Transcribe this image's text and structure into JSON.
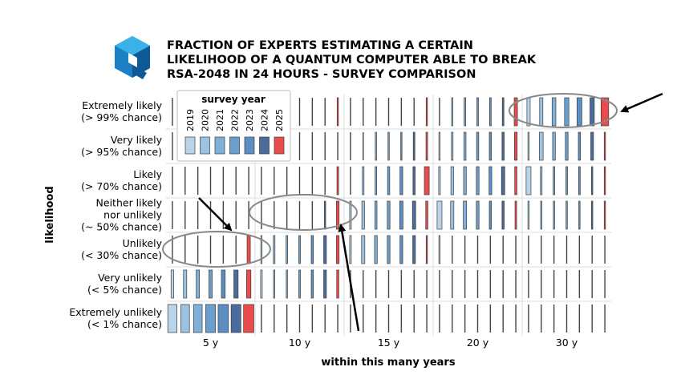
{
  "chart_data": {
    "type": "heatmap",
    "title_lines": [
      "FRACTION OF EXPERTS ESTIMATING A CERTAIN",
      "LIKELIHOOD OF A QUANTUM COMPUTER ABLE TO BREAK",
      "RSA-2048 IN 24 HOURS - SURVEY COMPARISON"
    ],
    "xlabel": "within this many years",
    "ylabel": "likelihood",
    "horizons": [
      "5 y",
      "10 y",
      "15 y",
      "20 y",
      "30 y"
    ],
    "likelihoods": [
      {
        "line1": "Extremely likely",
        "line2": "(> 99% chance)"
      },
      {
        "line1": "Very likely",
        "line2": "(> 95% chance)"
      },
      {
        "line1": "Likely",
        "line2": "(> 70% chance)"
      },
      {
        "line1": "Neither likely",
        "line2": "nor unlikely",
        "line3": "(~ 50% chance)"
      },
      {
        "line1": "Unlikely",
        "line2": "(< 30% chance)"
      },
      {
        "line1": "Very unlikely",
        "line2": "(< 5% chance)"
      },
      {
        "line1": "Extremely unlikely",
        "line2": "(< 1% chance)"
      }
    ],
    "legend": {
      "title": "survey year",
      "years": [
        "2019",
        "2020",
        "2021",
        "2022",
        "2023",
        "2024",
        "2025"
      ],
      "colors": [
        "#b9d4e9",
        "#9cc3e2",
        "#7eb0d9",
        "#6a9fcd",
        "#5b8fc3",
        "#4a6b9c",
        "#ea4b4b"
      ]
    },
    "fractions_note": "fraction of experts, per likelihood row, per horizon, per survey year 2019-2025",
    "series": [
      {
        "name": "2019",
        "values": [
          [
            0.0,
            0.0,
            0.0,
            0.0,
            0.3
          ],
          [
            0.0,
            0.0,
            0.0,
            0.05,
            0.08
          ],
          [
            0.0,
            0.0,
            0.0,
            0.15,
            0.45
          ],
          [
            0.0,
            0.0,
            0.15,
            0.45,
            0.08
          ],
          [
            0.0,
            0.08,
            0.15,
            0.1,
            0.0
          ],
          [
            0.25,
            0.15,
            0.0,
            0.0,
            0.0
          ],
          [
            0.85,
            0.0,
            0.0,
            0.0,
            0.0
          ]
        ]
      },
      {
        "name": "2020",
        "values": [
          [
            0.0,
            0.0,
            0.0,
            0.1,
            0.3
          ],
          [
            0.0,
            0.0,
            0.0,
            0.15,
            0.35
          ],
          [
            0.0,
            0.0,
            0.15,
            0.25,
            0.15
          ],
          [
            0.0,
            0.0,
            0.25,
            0.3,
            0.05
          ],
          [
            0.0,
            0.15,
            0.3,
            0.0,
            0.0
          ],
          [
            0.3,
            0.1,
            0.0,
            0.0,
            0.0
          ],
          [
            0.8,
            0.0,
            0.0,
            0.0,
            0.0
          ]
        ]
      },
      {
        "name": "2021",
        "values": [
          [
            0.0,
            0.0,
            0.0,
            0.15,
            0.35
          ],
          [
            0.0,
            0.0,
            0.08,
            0.2,
            0.25
          ],
          [
            0.0,
            0.0,
            0.15,
            0.25,
            0.15
          ],
          [
            0.0,
            0.0,
            0.2,
            0.3,
            0.05
          ],
          [
            0.0,
            0.15,
            0.25,
            0.0,
            0.0
          ],
          [
            0.3,
            0.1,
            0.0,
            0.0,
            0.0
          ],
          [
            0.8,
            0.0,
            0.0,
            0.0,
            0.0
          ]
        ]
      },
      {
        "name": "2022",
        "values": [
          [
            0.0,
            0.0,
            0.0,
            0.15,
            0.4
          ],
          [
            0.0,
            0.0,
            0.1,
            0.2,
            0.25
          ],
          [
            0.0,
            0.0,
            0.2,
            0.25,
            0.15
          ],
          [
            0.0,
            0.0,
            0.25,
            0.25,
            0.05
          ],
          [
            0.0,
            0.15,
            0.25,
            0.0,
            0.0
          ],
          [
            0.3,
            0.15,
            0.0,
            0.0,
            0.0
          ],
          [
            0.9,
            0.0,
            0.0,
            0.0,
            0.0
          ]
        ]
      },
      {
        "name": "2023",
        "values": [
          [
            0.0,
            0.0,
            0.0,
            0.15,
            0.45
          ],
          [
            0.0,
            0.0,
            0.1,
            0.2,
            0.2
          ],
          [
            0.0,
            0.0,
            0.25,
            0.25,
            0.15
          ],
          [
            0.0,
            0.0,
            0.3,
            0.2,
            0.05
          ],
          [
            0.0,
            0.2,
            0.25,
            0.0,
            0.0
          ],
          [
            0.35,
            0.2,
            0.0,
            0.0,
            0.0
          ],
          [
            0.95,
            0.0,
            0.0,
            0.0,
            0.0
          ]
        ]
      },
      {
        "name": "2024",
        "values": [
          [
            0.0,
            0.0,
            0.0,
            0.15,
            0.4
          ],
          [
            0.0,
            0.0,
            0.15,
            0.2,
            0.25
          ],
          [
            0.0,
            0.0,
            0.2,
            0.3,
            0.1
          ],
          [
            0.0,
            0.05,
            0.3,
            0.2,
            0.05
          ],
          [
            0.0,
            0.25,
            0.25,
            0.0,
            0.0
          ],
          [
            0.4,
            0.25,
            0.0,
            0.0,
            0.0
          ],
          [
            0.9,
            0.0,
            0.0,
            0.0,
            0.0
          ]
        ]
      },
      {
        "name": "2025",
        "values": [
          [
            0.0,
            0.08,
            0.08,
            0.3,
            0.7
          ],
          [
            0.0,
            0.0,
            0.15,
            0.25,
            0.1
          ],
          [
            0.0,
            0.15,
            0.45,
            0.2,
            0.1
          ],
          [
            0.0,
            0.25,
            0.2,
            0.15,
            0.05
          ],
          [
            0.3,
            0.25,
            0.05,
            0.0,
            0.0
          ],
          [
            0.4,
            0.2,
            0.0,
            0.0,
            0.0
          ],
          [
            0.95,
            0.0,
            0.0,
            0.0,
            0.0
          ]
        ]
      }
    ],
    "annotations": [
      {
        "label": "highlight",
        "row": "Extremely likely",
        "horizon": "30 y"
      },
      {
        "label": "highlight",
        "row": "Neither likely nor unlikely",
        "horizon": "10 y"
      },
      {
        "label": "highlight",
        "row": "Unlikely",
        "horizon": "5 y"
      }
    ]
  }
}
